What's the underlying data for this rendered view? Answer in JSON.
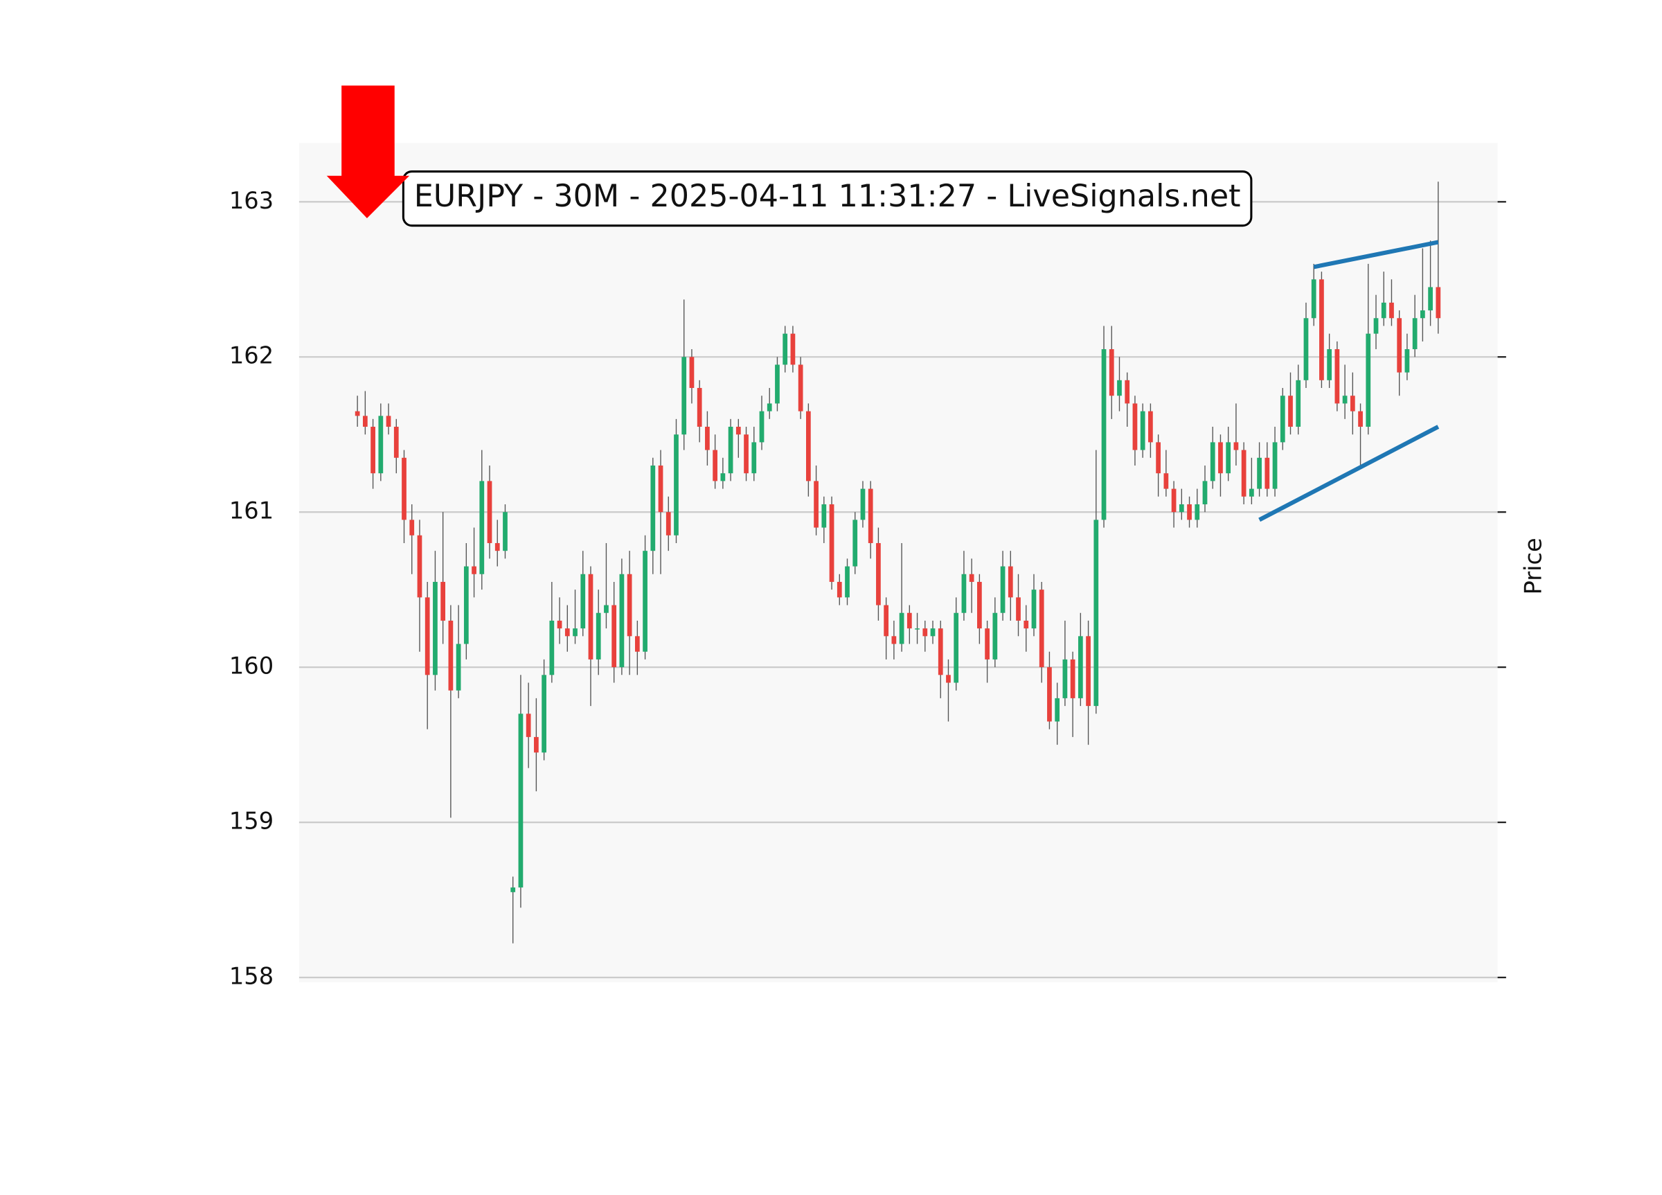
{
  "chart_data": {
    "type": "candlestick",
    "title": "EURJPY - 30M - 2025-04-11 11:31:27 - LiveSignals.net",
    "y_label": "Price",
    "ylim": [
      157.97,
      163.38
    ],
    "yticks": [
      158,
      159,
      160,
      161,
      162,
      163
    ],
    "grid": true,
    "up_color": "#22ab6e",
    "down_color": "#e8413c",
    "wick_color": "#555555",
    "ohlc": [
      [
        161.65,
        161.75,
        161.55,
        161.62
      ],
      [
        161.62,
        161.78,
        161.5,
        161.55
      ],
      [
        161.55,
        161.6,
        161.15,
        161.25
      ],
      [
        161.25,
        161.7,
        161.2,
        161.62
      ],
      [
        161.62,
        161.7,
        161.5,
        161.55
      ],
      [
        161.55,
        161.6,
        161.25,
        161.35
      ],
      [
        161.35,
        161.4,
        160.8,
        160.95
      ],
      [
        160.95,
        161.05,
        160.6,
        160.85
      ],
      [
        160.85,
        160.95,
        160.1,
        160.45
      ],
      [
        160.45,
        160.55,
        159.6,
        159.95
      ],
      [
        159.95,
        160.75,
        159.85,
        160.55
      ],
      [
        160.55,
        161.0,
        160.15,
        160.3
      ],
      [
        160.3,
        160.4,
        159.03,
        159.85
      ],
      [
        159.85,
        160.4,
        159.8,
        160.15
      ],
      [
        160.15,
        160.8,
        160.05,
        160.65
      ],
      [
        160.65,
        160.9,
        160.45,
        160.6
      ],
      [
        160.6,
        161.4,
        160.5,
        161.2
      ],
      [
        161.2,
        161.3,
        160.7,
        160.8
      ],
      [
        160.8,
        160.95,
        160.65,
        160.75
      ],
      [
        160.75,
        161.05,
        160.7,
        161.0
      ],
      [
        158.55,
        158.65,
        158.22,
        158.58
      ],
      [
        158.58,
        159.95,
        158.45,
        159.7
      ],
      [
        159.7,
        159.9,
        159.35,
        159.55
      ],
      [
        159.55,
        159.8,
        159.2,
        159.45
      ],
      [
        159.45,
        160.05,
        159.4,
        159.95
      ],
      [
        159.95,
        160.55,
        159.9,
        160.3
      ],
      [
        160.3,
        160.45,
        160.15,
        160.25
      ],
      [
        160.25,
        160.4,
        160.1,
        160.2
      ],
      [
        160.2,
        160.5,
        160.15,
        160.25
      ],
      [
        160.25,
        160.75,
        160.2,
        160.6
      ],
      [
        160.6,
        160.65,
        159.75,
        160.05
      ],
      [
        160.05,
        160.5,
        159.95,
        160.35
      ],
      [
        160.35,
        160.8,
        160.25,
        160.4
      ],
      [
        160.4,
        160.55,
        159.9,
        160.0
      ],
      [
        160.0,
        160.7,
        159.95,
        160.6
      ],
      [
        160.6,
        160.75,
        159.95,
        160.2
      ],
      [
        160.2,
        160.3,
        159.95,
        160.1
      ],
      [
        160.1,
        160.85,
        160.05,
        160.75
      ],
      [
        160.75,
        161.35,
        160.6,
        161.3
      ],
      [
        161.3,
        161.4,
        160.6,
        161.0
      ],
      [
        161.0,
        161.1,
        160.75,
        160.85
      ],
      [
        160.85,
        161.6,
        160.8,
        161.5
      ],
      [
        161.5,
        162.37,
        161.4,
        162.0
      ],
      [
        162.0,
        162.05,
        161.7,
        161.8
      ],
      [
        161.8,
        161.85,
        161.45,
        161.55
      ],
      [
        161.55,
        161.65,
        161.3,
        161.4
      ],
      [
        161.4,
        161.5,
        161.15,
        161.2
      ],
      [
        161.2,
        161.35,
        161.15,
        161.25
      ],
      [
        161.25,
        161.6,
        161.2,
        161.55
      ],
      [
        161.55,
        161.6,
        161.35,
        161.5
      ],
      [
        161.5,
        161.55,
        161.2,
        161.25
      ],
      [
        161.25,
        161.55,
        161.2,
        161.45
      ],
      [
        161.45,
        161.75,
        161.4,
        161.65
      ],
      [
        161.65,
        161.8,
        161.6,
        161.7
      ],
      [
        161.7,
        162.0,
        161.65,
        161.95
      ],
      [
        161.95,
        162.2,
        161.9,
        162.15
      ],
      [
        162.15,
        162.2,
        161.9,
        161.95
      ],
      [
        161.95,
        162.0,
        161.6,
        161.65
      ],
      [
        161.65,
        161.7,
        161.1,
        161.2
      ],
      [
        161.2,
        161.3,
        160.85,
        160.9
      ],
      [
        160.9,
        161.1,
        160.8,
        161.05
      ],
      [
        161.05,
        161.1,
        160.5,
        160.55
      ],
      [
        160.55,
        160.6,
        160.4,
        160.45
      ],
      [
        160.45,
        160.7,
        160.4,
        160.65
      ],
      [
        160.65,
        161.0,
        160.6,
        160.95
      ],
      [
        160.95,
        161.2,
        160.9,
        161.15
      ],
      [
        161.15,
        161.2,
        160.7,
        160.8
      ],
      [
        160.8,
        160.9,
        160.3,
        160.4
      ],
      [
        160.4,
        160.45,
        160.05,
        160.2
      ],
      [
        160.2,
        160.3,
        160.05,
        160.15
      ],
      [
        160.15,
        160.8,
        160.1,
        160.35
      ],
      [
        160.35,
        160.4,
        160.15,
        160.25
      ],
      [
        160.25,
        160.35,
        160.15,
        160.25
      ],
      [
        160.25,
        160.3,
        160.1,
        160.2
      ],
      [
        160.2,
        160.3,
        160.15,
        160.25
      ],
      [
        160.25,
        160.3,
        159.8,
        159.95
      ],
      [
        159.95,
        160.05,
        159.65,
        159.9
      ],
      [
        159.9,
        160.45,
        159.85,
        160.35
      ],
      [
        160.35,
        160.75,
        160.3,
        160.6
      ],
      [
        160.6,
        160.7,
        160.35,
        160.55
      ],
      [
        160.55,
        160.6,
        160.15,
        160.25
      ],
      [
        160.25,
        160.3,
        159.9,
        160.05
      ],
      [
        160.05,
        160.45,
        160.0,
        160.35
      ],
      [
        160.35,
        160.75,
        160.3,
        160.65
      ],
      [
        160.65,
        160.75,
        160.3,
        160.45
      ],
      [
        160.45,
        160.6,
        160.2,
        160.3
      ],
      [
        160.3,
        160.4,
        160.1,
        160.25
      ],
      [
        160.25,
        160.6,
        160.2,
        160.5
      ],
      [
        160.5,
        160.55,
        159.9,
        160.0
      ],
      [
        160.0,
        160.1,
        159.6,
        159.65
      ],
      [
        159.65,
        159.9,
        159.5,
        159.8
      ],
      [
        159.8,
        160.3,
        159.75,
        160.05
      ],
      [
        160.05,
        160.1,
        159.55,
        159.8
      ],
      [
        159.8,
        160.35,
        159.75,
        160.2
      ],
      [
        160.2,
        160.3,
        159.5,
        159.75
      ],
      [
        159.75,
        161.4,
        159.7,
        160.95
      ],
      [
        160.95,
        162.2,
        160.9,
        162.05
      ],
      [
        162.05,
        162.2,
        161.6,
        161.75
      ],
      [
        161.75,
        162.0,
        161.65,
        161.85
      ],
      [
        161.85,
        161.9,
        161.55,
        161.7
      ],
      [
        161.7,
        161.75,
        161.3,
        161.4
      ],
      [
        161.4,
        161.7,
        161.35,
        161.65
      ],
      [
        161.65,
        161.7,
        161.35,
        161.45
      ],
      [
        161.45,
        161.5,
        161.1,
        161.25
      ],
      [
        161.25,
        161.4,
        161.1,
        161.15
      ],
      [
        161.15,
        161.2,
        160.9,
        161.0
      ],
      [
        161.0,
        161.15,
        160.95,
        161.05
      ],
      [
        161.05,
        161.1,
        160.9,
        160.95
      ],
      [
        160.95,
        161.15,
        160.9,
        161.05
      ],
      [
        161.05,
        161.3,
        161.0,
        161.2
      ],
      [
        161.2,
        161.55,
        161.15,
        161.45
      ],
      [
        161.45,
        161.5,
        161.1,
        161.25
      ],
      [
        161.25,
        161.55,
        161.2,
        161.45
      ],
      [
        161.45,
        161.7,
        161.3,
        161.4
      ],
      [
        161.4,
        161.45,
        161.05,
        161.1
      ],
      [
        161.1,
        161.35,
        161.05,
        161.15
      ],
      [
        161.15,
        161.45,
        161.1,
        161.35
      ],
      [
        161.35,
        161.45,
        161.1,
        161.15
      ],
      [
        161.15,
        161.55,
        161.1,
        161.45
      ],
      [
        161.45,
        161.8,
        161.4,
        161.75
      ],
      [
        161.75,
        161.9,
        161.5,
        161.55
      ],
      [
        161.55,
        161.95,
        161.5,
        161.85
      ],
      [
        161.85,
        162.35,
        161.8,
        162.25
      ],
      [
        162.25,
        162.6,
        162.2,
        162.5
      ],
      [
        162.5,
        162.55,
        161.8,
        161.85
      ],
      [
        161.85,
        162.15,
        161.8,
        162.05
      ],
      [
        162.05,
        162.1,
        161.65,
        161.7
      ],
      [
        161.7,
        161.95,
        161.6,
        161.75
      ],
      [
        161.75,
        161.9,
        161.5,
        161.65
      ],
      [
        161.65,
        161.7,
        161.3,
        161.55
      ],
      [
        161.55,
        162.6,
        161.5,
        162.15
      ],
      [
        162.15,
        162.4,
        162.05,
        162.25
      ],
      [
        162.25,
        162.55,
        162.2,
        162.35
      ],
      [
        162.35,
        162.5,
        162.2,
        162.25
      ],
      [
        162.25,
        162.3,
        161.75,
        161.9
      ],
      [
        161.9,
        162.15,
        161.85,
        162.05
      ],
      [
        162.05,
        162.4,
        162.0,
        162.25
      ],
      [
        162.25,
        162.7,
        162.1,
        162.3
      ],
      [
        162.3,
        162.75,
        162.2,
        162.45
      ],
      [
        162.45,
        163.13,
        162.15,
        162.25
      ]
    ],
    "trendlines": [
      {
        "x": [
          123,
          139
        ],
        "y": [
          162.58,
          162.74
        ]
      },
      {
        "x": [
          116,
          139
        ],
        "y": [
          160.95,
          161.55
        ]
      }
    ],
    "trendline_color": "#1f77b4"
  }
}
